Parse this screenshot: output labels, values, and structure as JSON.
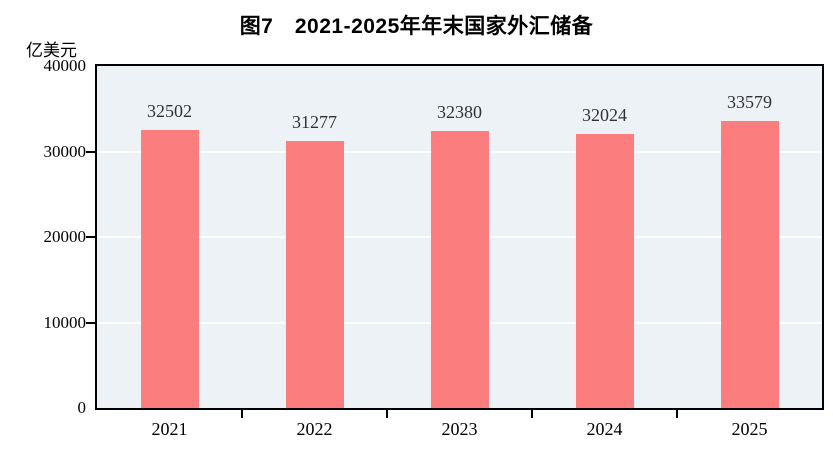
{
  "chart_data": {
    "type": "bar",
    "title": "图7　2021-2025年年末国家外汇储备",
    "ylabel": "亿美元",
    "xlabel": "",
    "categories": [
      "2021",
      "2022",
      "2023",
      "2024",
      "2025"
    ],
    "values": [
      32502,
      31277,
      32380,
      32024,
      33579
    ],
    "value_labels": [
      "32502",
      "31277",
      "32380",
      "32024",
      "33579"
    ],
    "ylim": [
      0,
      40000
    ],
    "yticks": [
      0,
      10000,
      20000,
      30000,
      40000
    ],
    "grid": true,
    "legend": "none",
    "colors": {
      "bar": "#FC7D7D",
      "plot_background": "#EDF2F7",
      "gridline": "#FFFFFF",
      "axis": "#000000",
      "value_label_text": "#333333",
      "tick_label_text": "#000000"
    }
  }
}
